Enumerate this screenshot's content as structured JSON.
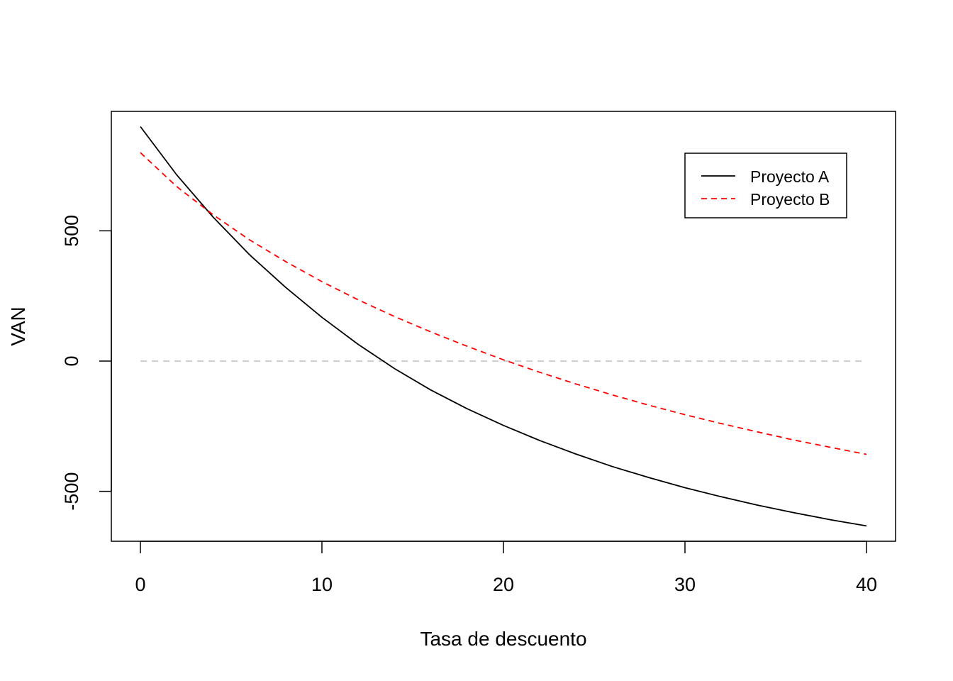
{
  "chart_data": {
    "type": "line",
    "title": "",
    "xlabel": "Tasa de descuento",
    "ylabel": "VAN",
    "xlim": [
      0,
      40
    ],
    "ylim": [
      -690,
      900
    ],
    "x_ticks": [
      0,
      10,
      20,
      30,
      40
    ],
    "x_tick_labels": [
      "0",
      "10",
      "20",
      "30",
      "40"
    ],
    "y_ticks": [
      -500,
      0,
      500
    ],
    "y_tick_labels": [
      "-500",
      "0",
      "500"
    ],
    "grid": false,
    "legend": "top-right",
    "reference_line": {
      "y": 0,
      "color": "#bebebe",
      "style": "dashed"
    },
    "x": [
      0,
      2,
      4,
      6,
      8,
      10,
      12,
      14,
      16,
      18,
      20,
      22,
      24,
      26,
      28,
      30,
      32,
      34,
      36,
      38,
      40
    ],
    "series": [
      {
        "name": "Proyecto A",
        "color": "#000000",
        "style": "solid",
        "values": [
          900,
          715,
          553,
          409,
          283,
          168,
          64,
          -29,
          -111,
          -183,
          -247,
          -305,
          -357,
          -405,
          -447,
          -486,
          -521,
          -553,
          -582,
          -609,
          -633
        ]
      },
      {
        "name": "Proyecto B",
        "color": "#ff0000",
        "style": "dashed",
        "values": [
          800,
          670,
          562,
          466,
          382,
          305,
          235,
          171,
          112,
          57,
          5,
          -43,
          -88,
          -130,
          -169,
          -206,
          -240,
          -272,
          -303,
          -331,
          -358
        ]
      }
    ]
  }
}
